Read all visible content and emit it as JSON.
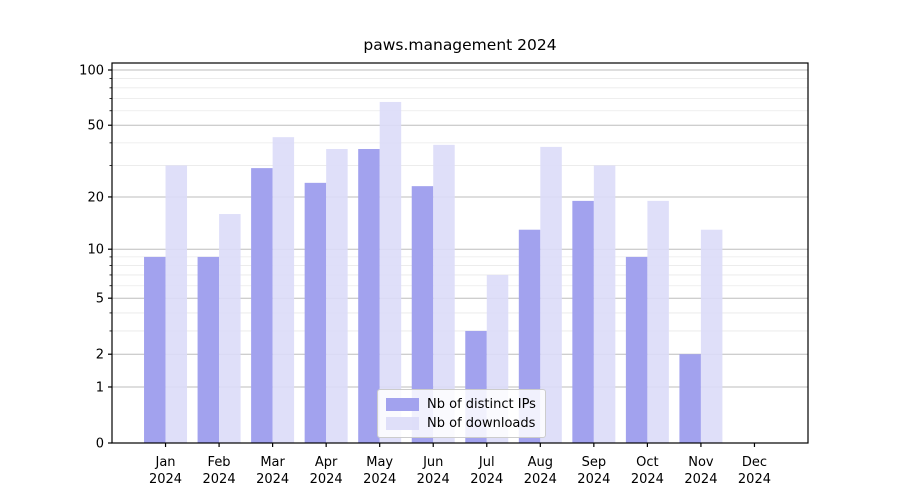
{
  "title": "paws.management 2024",
  "chart_data": {
    "type": "bar",
    "title": "paws.management 2024",
    "categories": [
      "Jan",
      "Feb",
      "Mar",
      "Apr",
      "May",
      "Jun",
      "Jul",
      "Aug",
      "Sep",
      "Oct",
      "Nov",
      "Dec"
    ],
    "category_sub_label": "2024",
    "series": [
      {
        "name": "Nb of distinct IPs",
        "color": "#a2a2ee",
        "opacity": 1,
        "values": [
          9,
          9,
          29,
          24,
          37,
          23,
          3,
          13,
          19,
          9,
          2,
          0
        ]
      },
      {
        "name": "Nb of downloads",
        "color": "#dcdcf8",
        "opacity": 0.9,
        "values": [
          30,
          16,
          43,
          37,
          67,
          39,
          7,
          38,
          30,
          19,
          13,
          0
        ]
      }
    ],
    "xlabel": "",
    "ylabel": "",
    "yscale": "log1p",
    "ylim": [
      0,
      110
    ],
    "yticks": [
      0,
      1,
      2,
      5,
      10,
      20,
      50,
      100
    ],
    "minor_yticks": [
      3,
      4,
      6,
      7,
      8,
      9,
      30,
      40,
      60,
      70,
      80,
      90
    ],
    "grid": true,
    "major_grid_color": "#bdbdbd",
    "minor_grid_color": "#e9e9e9",
    "axis_color": "#000000",
    "legend_position": "lower center"
  }
}
